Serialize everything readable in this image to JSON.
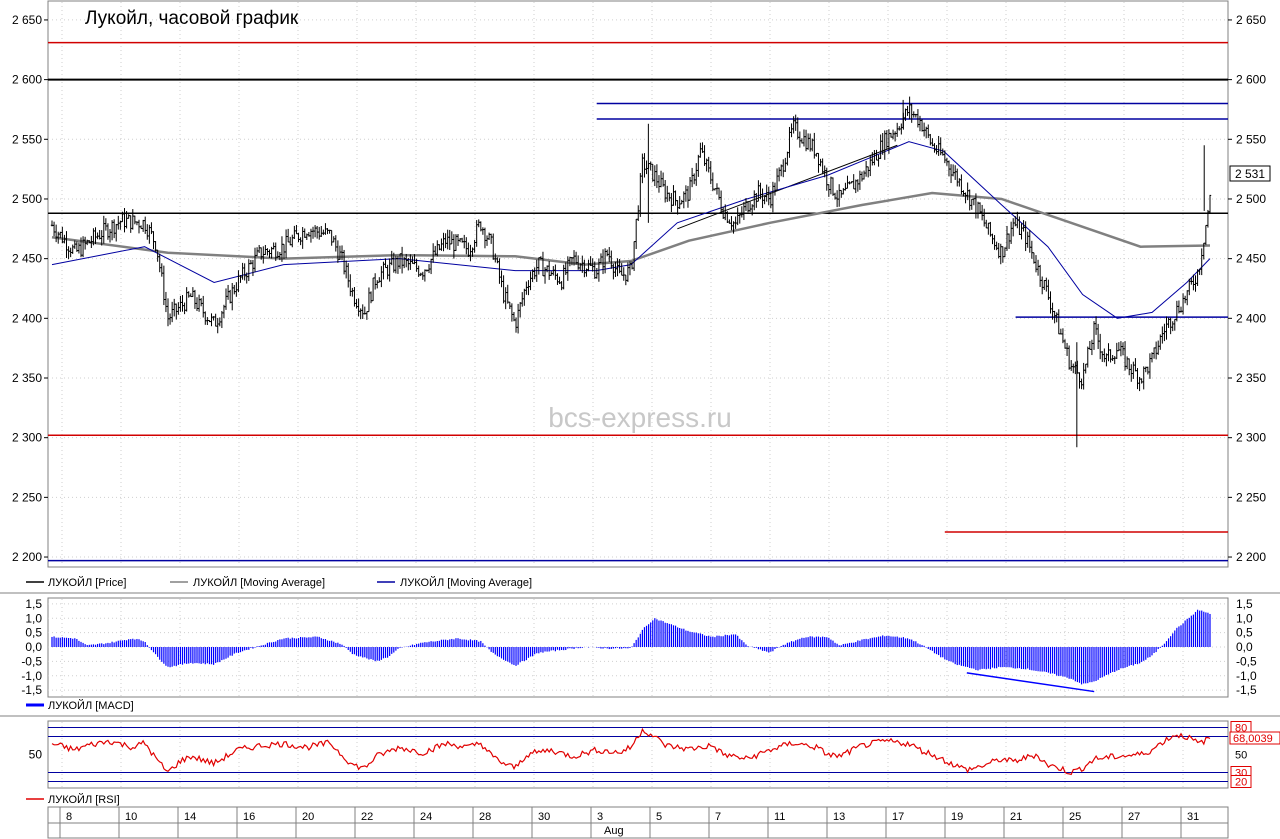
{
  "chart_data": [
    {
      "type": "candlestick",
      "title": "Лукойл, часовой график",
      "watermark": "bcs-express.ru",
      "ylim": [
        2195,
        2660
      ],
      "yticks": [
        {
          "v": 2650,
          "label": "2 650"
        },
        {
          "v": 2600,
          "label": "2 600"
        },
        {
          "v": 2550,
          "label": "2 550"
        },
        {
          "v": 2500,
          "label": "2 500"
        },
        {
          "v": 2450,
          "label": "2 450"
        },
        {
          "v": 2400,
          "label": "2 400"
        },
        {
          "v": 2350,
          "label": "2 350"
        },
        {
          "v": 2300,
          "label": "2 300"
        },
        {
          "v": 2250,
          "label": "2 250"
        },
        {
          "v": 2200,
          "label": "2 200"
        }
      ],
      "last_price_label": "2 531",
      "last_price": 2531,
      "legend": [
        {
          "name": "ЛУКОЙЛ [Price]",
          "color": "#000000"
        },
        {
          "name": "ЛУКОЙЛ [Moving Average]",
          "color": "#808080"
        },
        {
          "name": "ЛУКОЙЛ [Moving Average]",
          "color": "#0000a0"
        }
      ],
      "horizontal_levels": [
        {
          "y": 2631,
          "color": "#d00000",
          "from": 0.0,
          "to": 1.0
        },
        {
          "y": 2600,
          "color": "#000000",
          "from": 0.0,
          "to": 1.0
        },
        {
          "y": 2580,
          "color": "#0000a0",
          "from": 0.465,
          "to": 1.0
        },
        {
          "y": 2567,
          "color": "#0000a0",
          "from": 0.465,
          "to": 1.0
        },
        {
          "y": 2488,
          "color": "#000000",
          "from": 0.0,
          "to": 1.0
        },
        {
          "y": 2401,
          "color": "#0000a0",
          "from": 0.82,
          "to": 1.0
        },
        {
          "y": 2302,
          "color": "#d00000",
          "from": 0.0,
          "to": 1.0
        },
        {
          "y": 2221,
          "color": "#d00000",
          "from": 0.76,
          "to": 1.0
        },
        {
          "y": 2197,
          "color": "#0000a0",
          "from": 0.0,
          "to": 1.0
        }
      ],
      "trendlines": [
        {
          "x1": 0.54,
          "y1": 2475,
          "x2": 0.73,
          "y2": 2545,
          "color": "#000000"
        }
      ],
      "price_path": [
        [
          0.0,
          2478
        ],
        [
          0.02,
          2455
        ],
        [
          0.04,
          2470
        ],
        [
          0.06,
          2482
        ],
        [
          0.08,
          2480
        ],
        [
          0.09,
          2462
        ],
        [
          0.1,
          2400
        ],
        [
          0.12,
          2418
        ],
        [
          0.14,
          2395
        ],
        [
          0.16,
          2430
        ],
        [
          0.18,
          2455
        ],
        [
          0.2,
          2460
        ],
        [
          0.22,
          2475
        ],
        [
          0.24,
          2470
        ],
        [
          0.25,
          2450
        ],
        [
          0.26,
          2420
        ],
        [
          0.27,
          2405
        ],
        [
          0.28,
          2435
        ],
        [
          0.3,
          2448
        ],
        [
          0.32,
          2440
        ],
        [
          0.34,
          2465
        ],
        [
          0.36,
          2458
        ],
        [
          0.37,
          2480
        ],
        [
          0.38,
          2460
        ],
        [
          0.39,
          2420
        ],
        [
          0.4,
          2395
        ],
        [
          0.41,
          2430
        ],
        [
          0.42,
          2445
        ],
        [
          0.44,
          2432
        ],
        [
          0.45,
          2450
        ],
        [
          0.47,
          2440
        ],
        [
          0.48,
          2455
        ],
        [
          0.49,
          2435
        ],
        [
          0.5,
          2440
        ],
        [
          0.51,
          2530
        ],
        [
          0.52,
          2520
        ],
        [
          0.53,
          2505
        ],
        [
          0.54,
          2498
        ],
        [
          0.55,
          2505
        ],
        [
          0.56,
          2540
        ],
        [
          0.57,
          2515
        ],
        [
          0.58,
          2490
        ],
        [
          0.59,
          2478
        ],
        [
          0.6,
          2495
        ],
        [
          0.61,
          2505
        ],
        [
          0.62,
          2500
        ],
        [
          0.63,
          2525
        ],
        [
          0.64,
          2560
        ],
        [
          0.66,
          2540
        ],
        [
          0.67,
          2515
        ],
        [
          0.68,
          2500
        ],
        [
          0.7,
          2520
        ],
        [
          0.72,
          2550
        ],
        [
          0.73,
          2560
        ],
        [
          0.74,
          2575
        ],
        [
          0.75,
          2565
        ],
        [
          0.76,
          2545
        ],
        [
          0.77,
          2535
        ],
        [
          0.78,
          2520
        ],
        [
          0.79,
          2505
        ],
        [
          0.8,
          2490
        ],
        [
          0.81,
          2470
        ],
        [
          0.82,
          2455
        ],
        [
          0.83,
          2480
        ],
        [
          0.84,
          2470
        ],
        [
          0.85,
          2445
        ],
        [
          0.86,
          2420
        ],
        [
          0.87,
          2390
        ],
        [
          0.88,
          2360
        ],
        [
          0.89,
          2350
        ],
        [
          0.9,
          2390
        ],
        [
          0.91,
          2365
        ],
        [
          0.92,
          2375
        ],
        [
          0.93,
          2360
        ],
        [
          0.94,
          2350
        ],
        [
          0.95,
          2365
        ],
        [
          0.96,
          2390
        ],
        [
          0.97,
          2405
        ],
        [
          0.98,
          2420
        ],
        [
          0.99,
          2440
        ],
        [
          1.0,
          2500
        ]
      ],
      "ma_slow_path": [
        [
          0.0,
          2468
        ],
        [
          0.1,
          2455
        ],
        [
          0.2,
          2450
        ],
        [
          0.3,
          2453
        ],
        [
          0.4,
          2452
        ],
        [
          0.46,
          2445
        ],
        [
          0.5,
          2448
        ],
        [
          0.55,
          2465
        ],
        [
          0.62,
          2480
        ],
        [
          0.7,
          2495
        ],
        [
          0.76,
          2505
        ],
        [
          0.82,
          2500
        ],
        [
          0.88,
          2480
        ],
        [
          0.94,
          2460
        ],
        [
          1.0,
          2461
        ]
      ],
      "ma_fast_path": [
        [
          0.0,
          2445
        ],
        [
          0.08,
          2460
        ],
        [
          0.14,
          2430
        ],
        [
          0.2,
          2445
        ],
        [
          0.3,
          2450
        ],
        [
          0.4,
          2440
        ],
        [
          0.47,
          2440
        ],
        [
          0.5,
          2445
        ],
        [
          0.54,
          2480
        ],
        [
          0.6,
          2500
        ],
        [
          0.67,
          2520
        ],
        [
          0.74,
          2548
        ],
        [
          0.77,
          2540
        ],
        [
          0.82,
          2495
        ],
        [
          0.86,
          2460
        ],
        [
          0.89,
          2420
        ],
        [
          0.92,
          2400
        ],
        [
          0.95,
          2405
        ],
        [
          0.98,
          2430
        ],
        [
          1.0,
          2450
        ]
      ],
      "price_spikes": [
        {
          "x": 0.885,
          "low": 2292,
          "high": 2380
        },
        {
          "x": 0.515,
          "low": 2480,
          "high": 2563
        },
        {
          "x": 0.735,
          "low": 2560,
          "high": 2583
        },
        {
          "x": 0.995,
          "low": 2490,
          "high": 2545
        }
      ]
    },
    {
      "type": "area",
      "title": "ЛУКОЙЛ [MACD]",
      "ylim": [
        -1.6,
        1.6
      ],
      "yticks": [
        {
          "v": 1.5,
          "label": "1,5"
        },
        {
          "v": 1.0,
          "label": "1,0"
        },
        {
          "v": 0.5,
          "label": "0,5"
        },
        {
          "v": 0.0,
          "label": "0,0"
        },
        {
          "v": -0.5,
          "label": "-0,5"
        },
        {
          "v": -1.0,
          "label": "-1,0"
        },
        {
          "v": -1.5,
          "label": "-1,5"
        }
      ],
      "color": "#0000ff",
      "values_path": [
        [
          0.0,
          0.35
        ],
        [
          0.02,
          0.3
        ],
        [
          0.03,
          0.05
        ],
        [
          0.05,
          0.15
        ],
        [
          0.07,
          0.3
        ],
        [
          0.08,
          0.2
        ],
        [
          0.09,
          -0.3
        ],
        [
          0.1,
          -0.7
        ],
        [
          0.12,
          -0.55
        ],
        [
          0.14,
          -0.6
        ],
        [
          0.16,
          -0.2
        ],
        [
          0.18,
          0.05
        ],
        [
          0.2,
          0.3
        ],
        [
          0.23,
          0.35
        ],
        [
          0.25,
          0.1
        ],
        [
          0.26,
          -0.25
        ],
        [
          0.28,
          -0.5
        ],
        [
          0.29,
          -0.35
        ],
        [
          0.3,
          -0.05
        ],
        [
          0.32,
          0.15
        ],
        [
          0.35,
          0.3
        ],
        [
          0.37,
          0.2
        ],
        [
          0.38,
          -0.2
        ],
        [
          0.4,
          -0.65
        ],
        [
          0.42,
          -0.2
        ],
        [
          0.44,
          -0.1
        ],
        [
          0.46,
          0.0
        ],
        [
          0.48,
          -0.05
        ],
        [
          0.5,
          -0.05
        ],
        [
          0.51,
          0.6
        ],
        [
          0.52,
          1.0
        ],
        [
          0.53,
          0.85
        ],
        [
          0.55,
          0.55
        ],
        [
          0.57,
          0.35
        ],
        [
          0.59,
          0.45
        ],
        [
          0.6,
          0.05
        ],
        [
          0.62,
          -0.2
        ],
        [
          0.63,
          0.05
        ],
        [
          0.65,
          0.35
        ],
        [
          0.67,
          0.35
        ],
        [
          0.68,
          0.05
        ],
        [
          0.7,
          0.25
        ],
        [
          0.72,
          0.4
        ],
        [
          0.74,
          0.3
        ],
        [
          0.75,
          0.1
        ],
        [
          0.76,
          -0.15
        ],
        [
          0.77,
          -0.4
        ],
        [
          0.78,
          -0.6
        ],
        [
          0.8,
          -0.8
        ],
        [
          0.82,
          -0.7
        ],
        [
          0.84,
          -0.75
        ],
        [
          0.86,
          -0.9
        ],
        [
          0.88,
          -1.1
        ],
        [
          0.89,
          -1.3
        ],
        [
          0.9,
          -1.2
        ],
        [
          0.92,
          -0.8
        ],
        [
          0.94,
          -0.55
        ],
        [
          0.95,
          -0.3
        ],
        [
          0.96,
          0.1
        ],
        [
          0.97,
          0.6
        ],
        [
          0.98,
          0.95
        ],
        [
          0.99,
          1.3
        ],
        [
          1.0,
          1.15
        ]
      ],
      "divergence_line": {
        "x1": 0.79,
        "y1": -0.9,
        "x2": 0.9,
        "y2": -1.55,
        "color": "#0000ff"
      }
    },
    {
      "type": "line",
      "title": "ЛУКОЙЛ [RSI]",
      "ylim": [
        15,
        85
      ],
      "yticks_left": [
        {
          "v": 50,
          "label": "50"
        }
      ],
      "yticks_right": [
        {
          "v": 80,
          "label": "80",
          "boxed": true
        },
        {
          "v": 50,
          "label": "50",
          "boxed": false
        },
        {
          "v": 30,
          "label": "30",
          "boxed": true
        },
        {
          "v": 20,
          "label": "20",
          "boxed": true
        }
      ],
      "last_value_label": "68,0039",
      "last_value": 68.0,
      "levels": [
        {
          "v": 80,
          "color": "#0000a0"
        },
        {
          "v": 70,
          "color": "#0000a0"
        },
        {
          "v": 30,
          "color": "#0000a0"
        },
        {
          "v": 20,
          "color": "#0000a0"
        }
      ],
      "color": "#e00000",
      "values_path": [
        [
          0.0,
          62
        ],
        [
          0.02,
          55
        ],
        [
          0.03,
          60
        ],
        [
          0.05,
          65
        ],
        [
          0.07,
          58
        ],
        [
          0.08,
          63
        ],
        [
          0.09,
          45
        ],
        [
          0.1,
          30
        ],
        [
          0.11,
          42
        ],
        [
          0.12,
          48
        ],
        [
          0.14,
          40
        ],
        [
          0.16,
          55
        ],
        [
          0.18,
          60
        ],
        [
          0.2,
          62
        ],
        [
          0.22,
          58
        ],
        [
          0.24,
          63
        ],
        [
          0.25,
          50
        ],
        [
          0.26,
          38
        ],
        [
          0.27,
          35
        ],
        [
          0.28,
          48
        ],
        [
          0.3,
          58
        ],
        [
          0.32,
          52
        ],
        [
          0.34,
          62
        ],
        [
          0.36,
          58
        ],
        [
          0.37,
          63
        ],
        [
          0.38,
          48
        ],
        [
          0.39,
          40
        ],
        [
          0.4,
          35
        ],
        [
          0.41,
          50
        ],
        [
          0.43,
          55
        ],
        [
          0.45,
          48
        ],
        [
          0.47,
          55
        ],
        [
          0.49,
          52
        ],
        [
          0.5,
          58
        ],
        [
          0.51,
          78
        ],
        [
          0.52,
          70
        ],
        [
          0.53,
          60
        ],
        [
          0.55,
          56
        ],
        [
          0.57,
          60
        ],
        [
          0.58,
          50
        ],
        [
          0.6,
          45
        ],
        [
          0.62,
          55
        ],
        [
          0.64,
          63
        ],
        [
          0.66,
          58
        ],
        [
          0.67,
          50
        ],
        [
          0.68,
          48
        ],
        [
          0.7,
          60
        ],
        [
          0.72,
          65
        ],
        [
          0.74,
          62
        ],
        [
          0.75,
          55
        ],
        [
          0.76,
          50
        ],
        [
          0.77,
          44
        ],
        [
          0.78,
          38
        ],
        [
          0.79,
          33
        ],
        [
          0.8,
          36
        ],
        [
          0.82,
          45
        ],
        [
          0.83,
          42
        ],
        [
          0.85,
          50
        ],
        [
          0.86,
          38
        ],
        [
          0.87,
          35
        ],
        [
          0.88,
          30
        ],
        [
          0.89,
          35
        ],
        [
          0.9,
          45
        ],
        [
          0.92,
          48
        ],
        [
          0.94,
          50
        ],
        [
          0.95,
          55
        ],
        [
          0.96,
          65
        ],
        [
          0.97,
          72
        ],
        [
          0.98,
          70
        ],
        [
          0.99,
          62
        ],
        [
          1.0,
          68
        ]
      ]
    }
  ],
  "x_axis": {
    "day_labels": [
      "8",
      "10",
      "14",
      "16",
      "20",
      "22",
      "24",
      "28",
      "30",
      "3",
      "5",
      "7",
      "11",
      "13",
      "17",
      "19",
      "21",
      "25",
      "27",
      "31"
    ],
    "month_label": "Aug",
    "month_start_index": 9
  }
}
